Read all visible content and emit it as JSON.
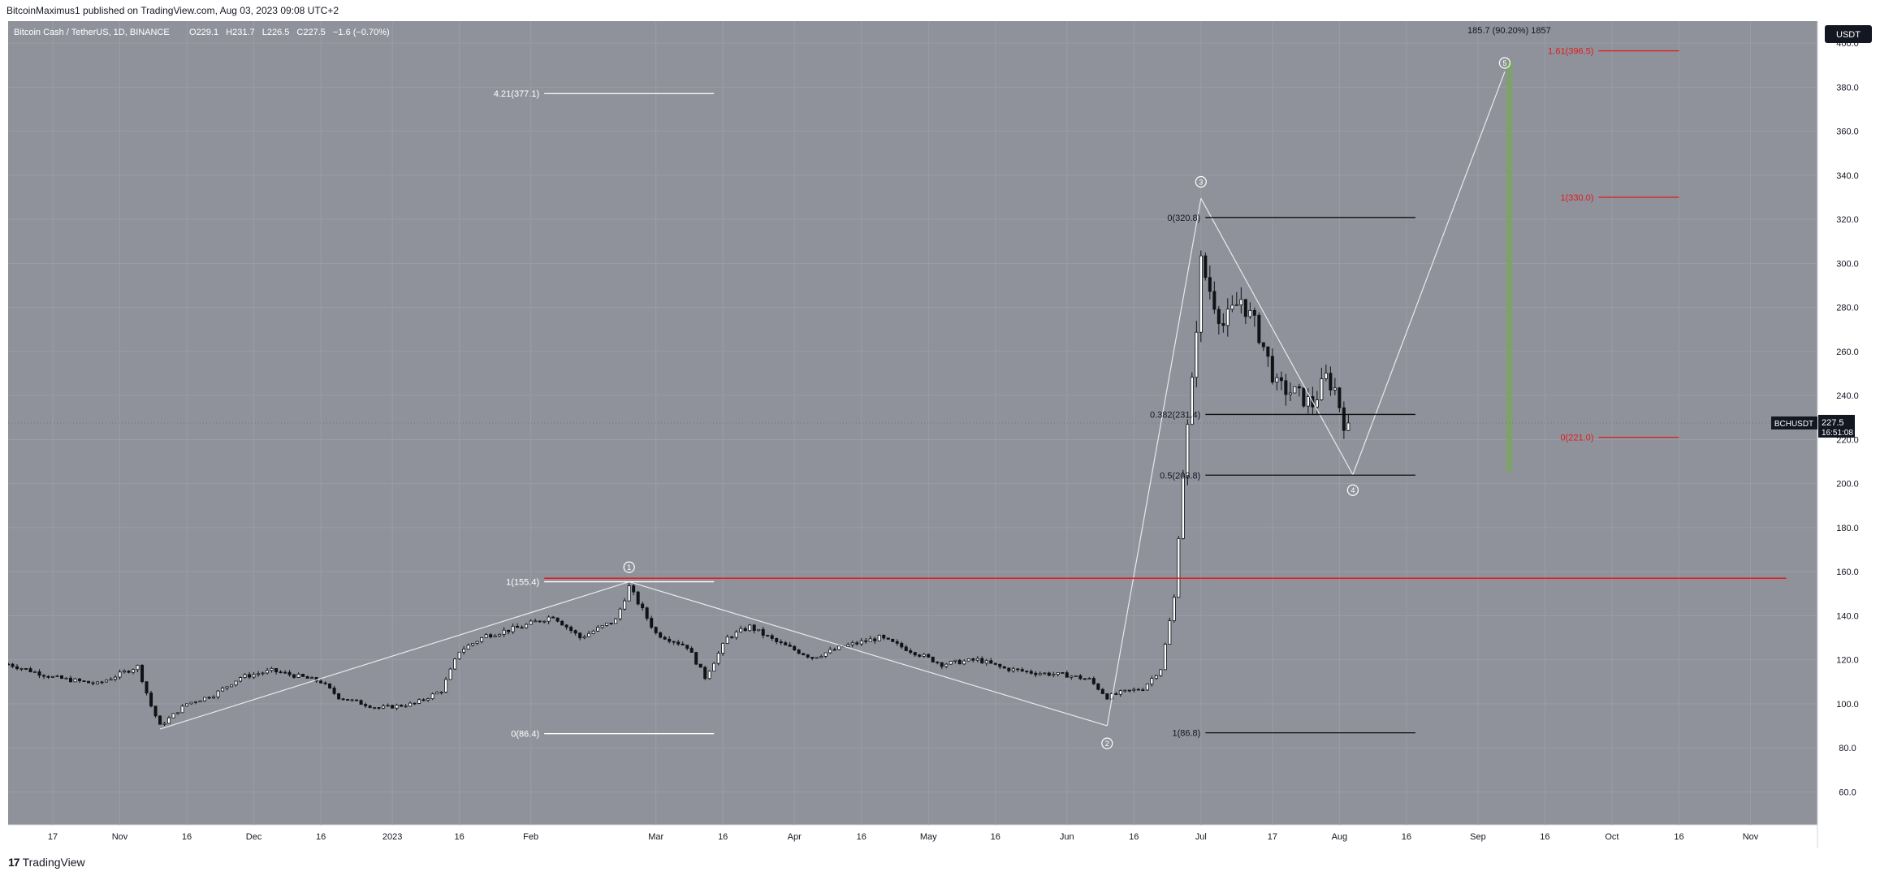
{
  "header": {
    "publisher_line": "BitcoinMaximus1 published on TradingView.com, Aug 03, 2023 09:08 UTC+2"
  },
  "footer": {
    "logo_text": "TradingView",
    "logo_mark": "17"
  },
  "colors": {
    "chart_bg": "#8f929b",
    "grid": "#9a9da5",
    "candle": "#101215",
    "white_line": "#ffffff",
    "black_line": "#0c0c0c",
    "red_line": "#e31a1c",
    "red_text": "#e31a1c",
    "green_bar": "#7ea36a",
    "axis_text": "#131722"
  },
  "chart_data": {
    "type": "candlestick",
    "symbol_line": {
      "title": "Bitcoin Cash / TetherUS, 1D, BINANCE",
      "o_label": "O",
      "o_value": "229.1",
      "h_label": "H",
      "h_value": "231.7",
      "l_label": "L",
      "l_value": "226.5",
      "c_label": "C",
      "c_value": "227.5",
      "change": "−1.6 (−0.70%)"
    },
    "currency_badge": "USDT",
    "ylim": [
      45,
      410
    ],
    "yticks": [
      "400.0",
      "380.0",
      "360.0",
      "340.0",
      "320.0",
      "300.0",
      "280.0",
      "260.0",
      "240.0",
      "220.0",
      "200.0",
      "180.0",
      "160.0",
      "140.0",
      "120.0",
      "100.0",
      "80.0",
      "60.0"
    ],
    "ytick_values": [
      400,
      380,
      360,
      340,
      320,
      300,
      280,
      260,
      240,
      220,
      200,
      180,
      160,
      140,
      120,
      100,
      80,
      60
    ],
    "xlim": [
      "2022-10-07",
      "2023-11-16"
    ],
    "xticks": [
      {
        "date": "2022-10-17",
        "label": "17"
      },
      {
        "date": "2022-11-01",
        "label": "Nov"
      },
      {
        "date": "2022-11-16",
        "label": "16"
      },
      {
        "date": "2022-12-01",
        "label": "Dec"
      },
      {
        "date": "2022-12-16",
        "label": "16"
      },
      {
        "date": "2023-01-01",
        "label": "2023"
      },
      {
        "date": "2023-01-16",
        "label": "16"
      },
      {
        "date": "2023-02-01",
        "label": "Feb"
      },
      {
        "date": "2023-03-01",
        "label": "Mar"
      },
      {
        "date": "2023-03-16",
        "label": "16"
      },
      {
        "date": "2023-04-01",
        "label": "Apr"
      },
      {
        "date": "2023-04-16",
        "label": "16"
      },
      {
        "date": "2023-05-01",
        "label": "May"
      },
      {
        "date": "2023-05-16",
        "label": "16"
      },
      {
        "date": "2023-06-01",
        "label": "Jun"
      },
      {
        "date": "2023-06-16",
        "label": "16"
      },
      {
        "date": "2023-07-01",
        "label": "Jul"
      },
      {
        "date": "2023-07-17",
        "label": "17"
      },
      {
        "date": "2023-08-01",
        "label": "Aug"
      },
      {
        "date": "2023-08-16",
        "label": "16"
      },
      {
        "date": "2023-09-01",
        "label": "Sep"
      },
      {
        "date": "2023-09-16",
        "label": "16"
      },
      {
        "date": "2023-10-01",
        "label": "Oct"
      },
      {
        "date": "2023-10-16",
        "label": "16"
      },
      {
        "date": "2023-11-01",
        "label": "Nov"
      }
    ],
    "price_path": [
      [
        "2022-10-07",
        118
      ],
      [
        "2022-10-17",
        112
      ],
      [
        "2022-10-27",
        109
      ],
      [
        "2022-11-05",
        117
      ],
      [
        "2022-11-08",
        99
      ],
      [
        "2022-11-10",
        90
      ],
      [
        "2022-11-16",
        100
      ],
      [
        "2022-11-22",
        104
      ],
      [
        "2022-11-28",
        112
      ],
      [
        "2022-12-05",
        115
      ],
      [
        "2022-12-12",
        112
      ],
      [
        "2022-12-16",
        110
      ],
      [
        "2022-12-20",
        103
      ],
      [
        "2022-12-29",
        98
      ],
      [
        "2023-01-06",
        100
      ],
      [
        "2023-01-12",
        106
      ],
      [
        "2023-01-16",
        124
      ],
      [
        "2023-01-22",
        131
      ],
      [
        "2023-01-30",
        135
      ],
      [
        "2023-02-06",
        140
      ],
      [
        "2023-02-12",
        130
      ],
      [
        "2023-02-20",
        138
      ],
      [
        "2023-02-23",
        153
      ],
      [
        "2023-03-01",
        132
      ],
      [
        "2023-03-08",
        126
      ],
      [
        "2023-03-12",
        112
      ],
      [
        "2023-03-17",
        130
      ],
      [
        "2023-03-22",
        135
      ],
      [
        "2023-03-28",
        128
      ],
      [
        "2023-04-05",
        121
      ],
      [
        "2023-04-12",
        126
      ],
      [
        "2023-04-20",
        130
      ],
      [
        "2023-04-26",
        125
      ],
      [
        "2023-05-04",
        118
      ],
      [
        "2023-05-12",
        120
      ],
      [
        "2023-05-18",
        116
      ],
      [
        "2023-05-25",
        114
      ],
      [
        "2023-06-01",
        113
      ],
      [
        "2023-06-06",
        111
      ],
      [
        "2023-06-10",
        103
      ],
      [
        "2023-06-13",
        105
      ],
      [
        "2023-06-18",
        107
      ],
      [
        "2023-06-22",
        116
      ],
      [
        "2023-06-25",
        148
      ],
      [
        "2023-06-27",
        205
      ],
      [
        "2023-06-29",
        245
      ],
      [
        "2023-07-01",
        300
      ],
      [
        "2023-07-03",
        288
      ],
      [
        "2023-07-06",
        272
      ],
      [
        "2023-07-10",
        284
      ],
      [
        "2023-07-14",
        268
      ],
      [
        "2023-07-18",
        244
      ],
      [
        "2023-07-22",
        241
      ],
      [
        "2023-07-26",
        236
      ],
      [
        "2023-07-29",
        248
      ],
      [
        "2023-07-31",
        243
      ],
      [
        "2023-08-02",
        228
      ],
      [
        "2023-08-03",
        227.5
      ]
    ],
    "price_tag": {
      "symbol": "BCHUSDT",
      "price": "227.5",
      "countdown": "16:51:08",
      "value": 227.5
    },
    "white_count": [
      {
        "date": "2022-11-10",
        "price": 88.5
      },
      {
        "date": "2023-02-23",
        "price": 155.4
      },
      {
        "date": "2023-06-10",
        "price": 90
      },
      {
        "date": "2023-07-01",
        "price": 329.5
      },
      {
        "date": "2023-08-04",
        "price": 204
      },
      {
        "date": "2023-09-07",
        "price": 387
      }
    ],
    "wave_labels": [
      {
        "label": "1",
        "date": "2023-02-23",
        "price": 162
      },
      {
        "label": "2",
        "date": "2023-06-10",
        "price": 82
      },
      {
        "label": "3",
        "date": "2023-07-01",
        "price": 337
      },
      {
        "label": "4",
        "date": "2023-08-04",
        "price": 197
      },
      {
        "label": "5",
        "date": "2023-09-07",
        "price": 391
      }
    ],
    "fib_white": [
      {
        "text": "4.21(377.1)",
        "value": 377.1
      },
      {
        "text": "1(155.4)",
        "value": 155.4
      },
      {
        "text": "0(86.4)",
        "value": 86.4
      }
    ],
    "fib_white_span": [
      "2023-02-04",
      "2023-03-14"
    ],
    "fib_black": [
      {
        "text": "0(320.8)",
        "value": 320.8
      },
      {
        "text": "0.382(231.4)",
        "value": 231.4
      },
      {
        "text": "0.5(203.8)",
        "value": 203.8
      },
      {
        "text": "1(86.8)",
        "value": 86.8
      }
    ],
    "fib_black_span": [
      "2023-07-02",
      "2023-08-18"
    ],
    "fib_red": [
      {
        "text": "1.61(396.5)",
        "value": 396.5
      },
      {
        "text": "1(330.0)",
        "value": 330.0
      },
      {
        "text": "0(221.0)",
        "value": 221.0
      }
    ],
    "fib_red_span": [
      "2023-09-28",
      "2023-10-16"
    ],
    "horizontal_red": {
      "value": 157,
      "from": "2023-02-04",
      "to": "2023-11-09"
    },
    "measure": {
      "text": "185.7 (90.20%) 1857",
      "date": "2023-09-08",
      "from": 205,
      "to": 392
    }
  }
}
